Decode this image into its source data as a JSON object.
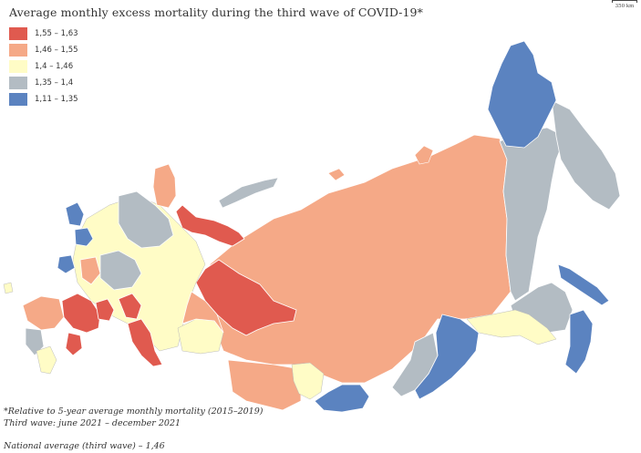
{
  "title": "Average monthly excess mortality during the third wave of COVID-19*",
  "scale_label": "350 km",
  "legend": [
    {
      "label": "1,55 – 1,63",
      "color": "#e05a4f"
    },
    {
      "label": "1,46 – 1,55",
      "color": "#f5a987"
    },
    {
      "label": "1,4 – 1,46",
      "color": "#fffcc6"
    },
    {
      "label": "1,35 – 1,4",
      "color": "#b3bcc3"
    },
    {
      "label": "1,11 – 1,35",
      "color": "#5b83c0"
    }
  ],
  "footnotes": {
    "note1": "*Relative to 5-year average monthly mortality (2015–2019)",
    "note2": "Third wave: june 2021 – december 2021",
    "national": "National average (third wave) – 1,46"
  },
  "colors": {
    "border": "#ffffff",
    "islands": "#b3bcc3"
  }
}
